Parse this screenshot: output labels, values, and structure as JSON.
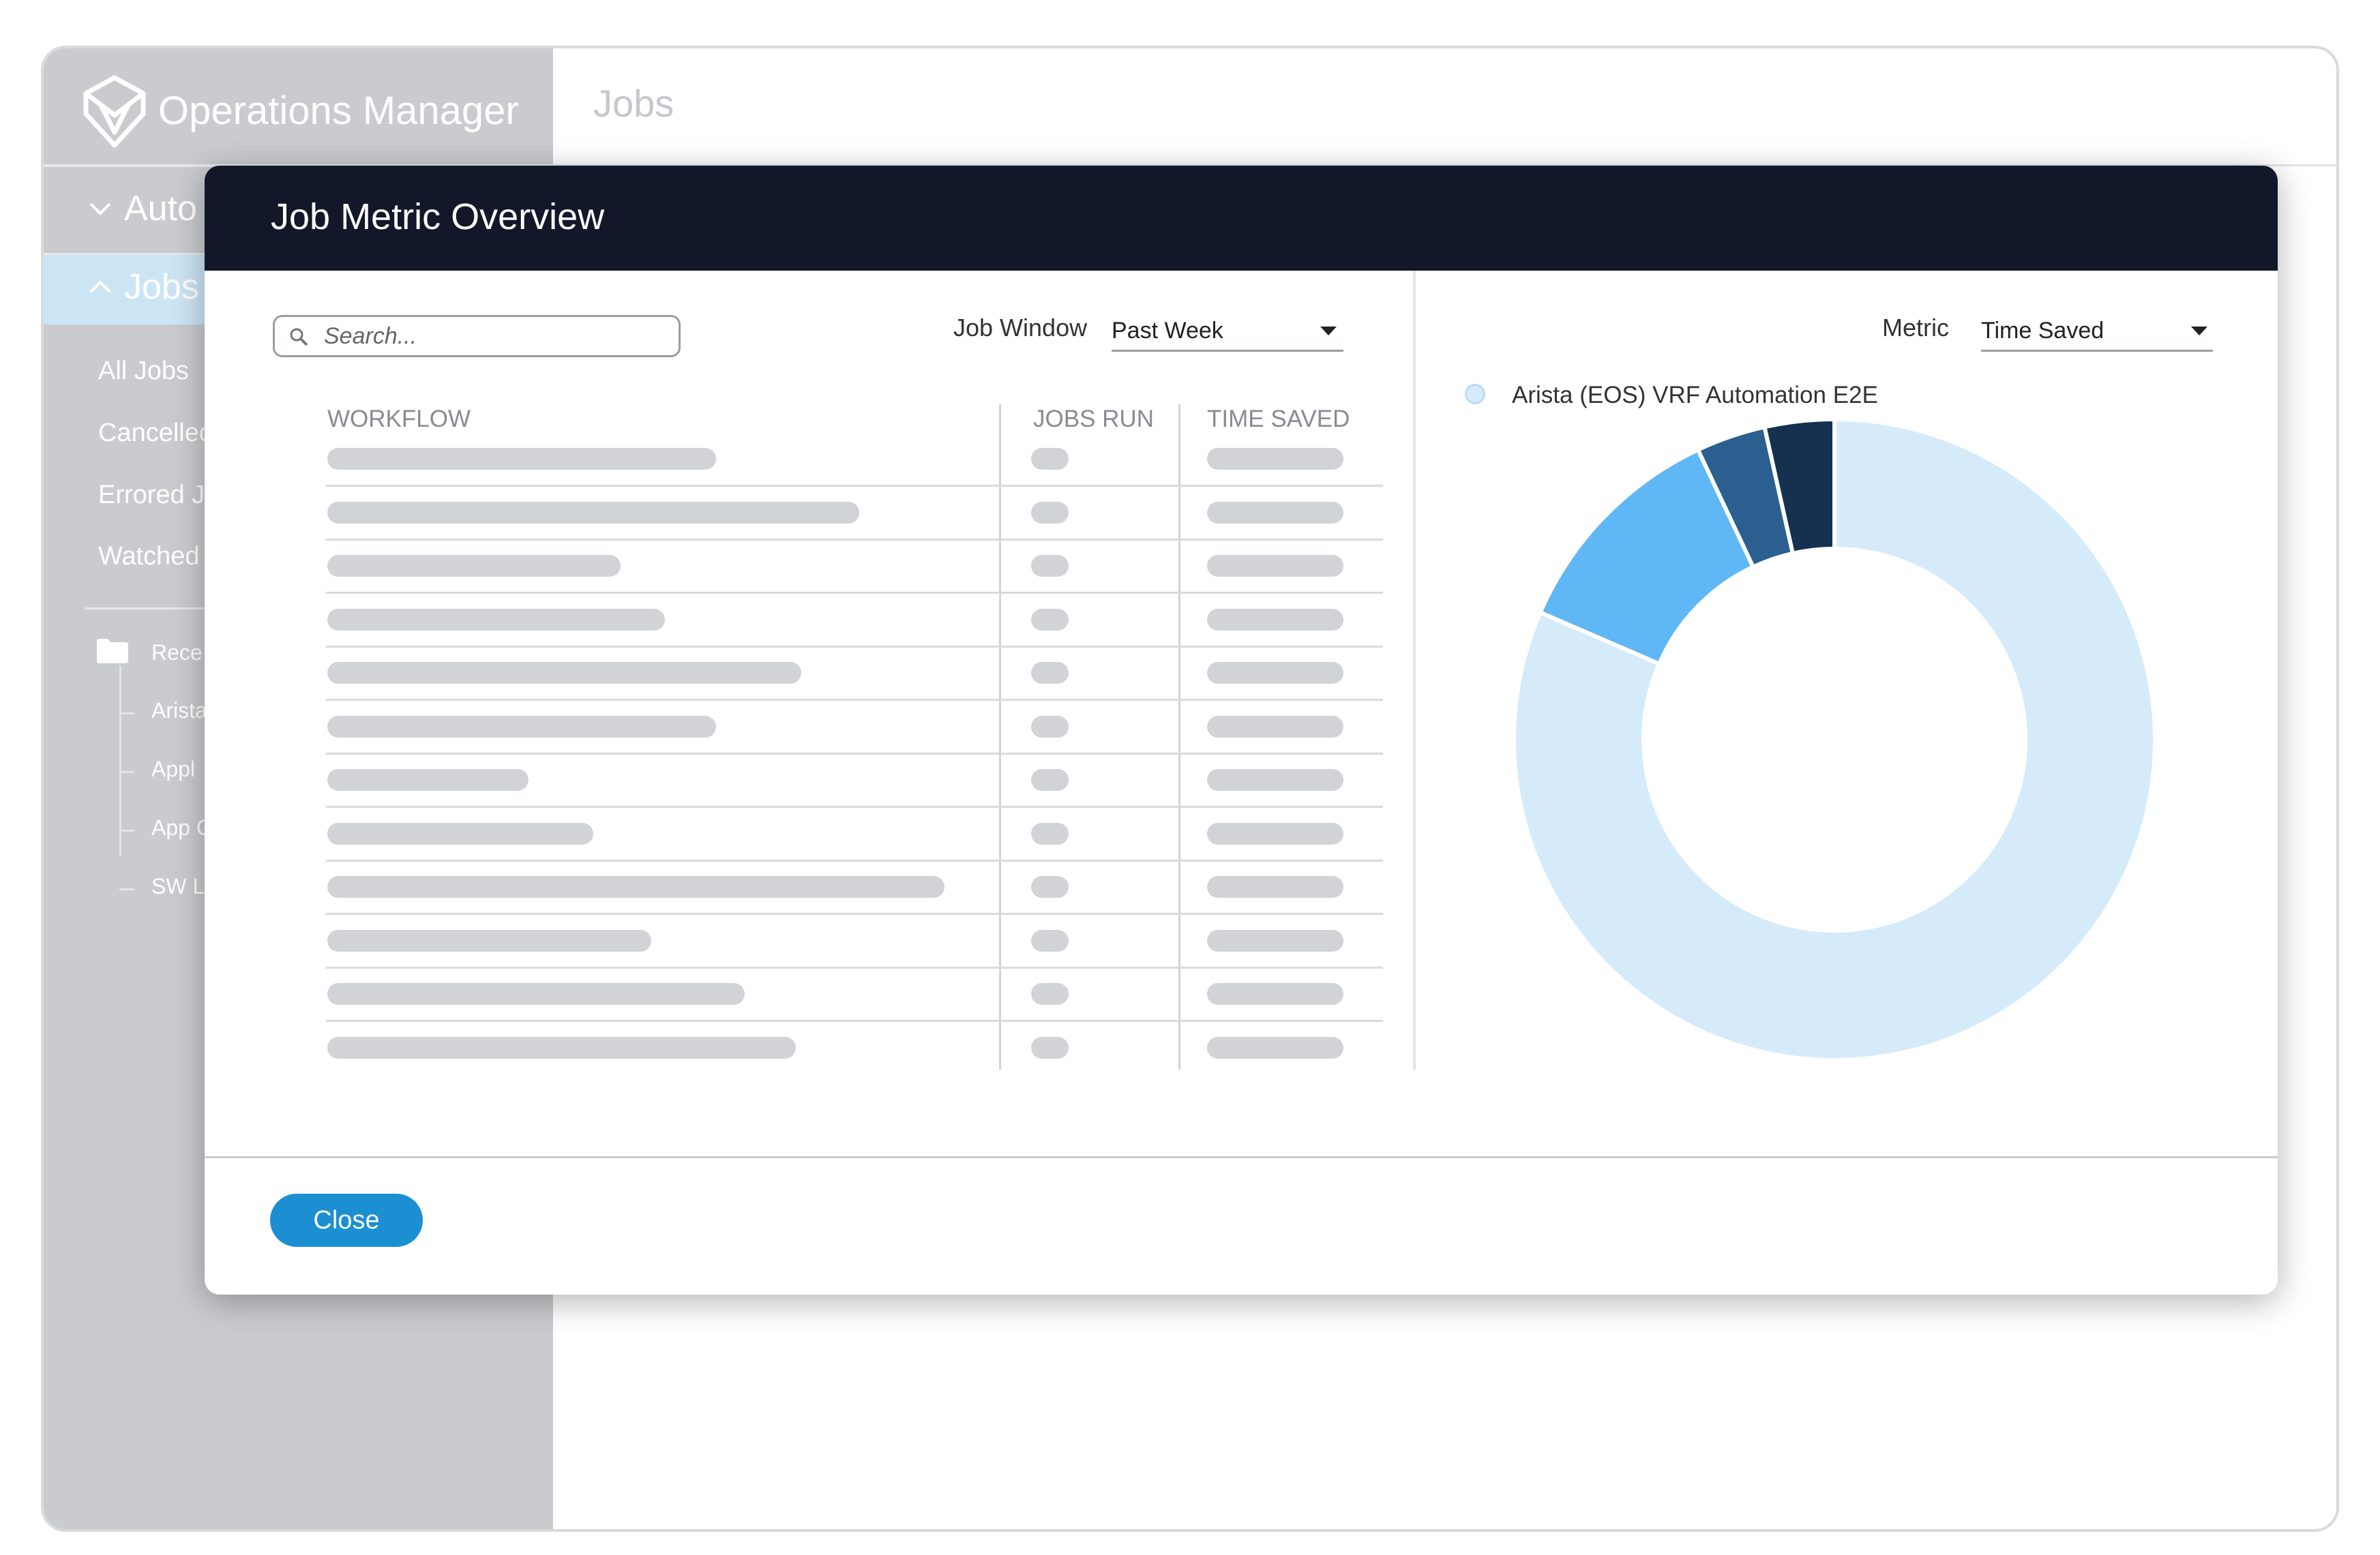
{
  "app": {
    "title": "Operations Manager"
  },
  "sidebar": {
    "sections": [
      {
        "label": "Auto",
        "expanded": false
      },
      {
        "label": "Jobs",
        "expanded": true
      }
    ],
    "job_links": [
      "All Jobs",
      "Cancelled",
      "Errored J",
      "Watched"
    ],
    "tree": {
      "folder": "Rece",
      "items": [
        "Arista",
        "Appl",
        "App C",
        "SW L"
      ]
    }
  },
  "page": {
    "title": "Jobs"
  },
  "modal": {
    "title": "Job Metric Overview",
    "search": {
      "placeholder": "Search..."
    },
    "job_window": {
      "label": "Job Window",
      "value": "Past Week"
    },
    "metric": {
      "label": "Metric",
      "value": "Time Saved"
    },
    "table": {
      "columns": [
        "WORKFLOW",
        "JOBS RUN",
        "TIME SAVED"
      ],
      "row_count": 12
    },
    "close_label": "Close"
  },
  "chart_data": {
    "type": "pie",
    "legend": [
      "Arista (EOS) VRF Automation E2E"
    ],
    "slices": [
      {
        "value": 81.5,
        "color": "#d5ebfa"
      },
      {
        "value": 11.5,
        "color": "#60b7f5"
      },
      {
        "value": 3.5,
        "color": "#2a5f8f"
      },
      {
        "value": 3.5,
        "color": "#15314f"
      }
    ]
  },
  "colors": {
    "sidebar": "#cacbcf",
    "modal_header": "#121829",
    "accent": "#1b8fd2",
    "active_nav": "#cce5f5"
  },
  "icons": [
    "logo-icon",
    "chevron-down-icon",
    "chevron-up-icon",
    "folder-icon",
    "search-icon",
    "dropdown-arrow-icon"
  ]
}
